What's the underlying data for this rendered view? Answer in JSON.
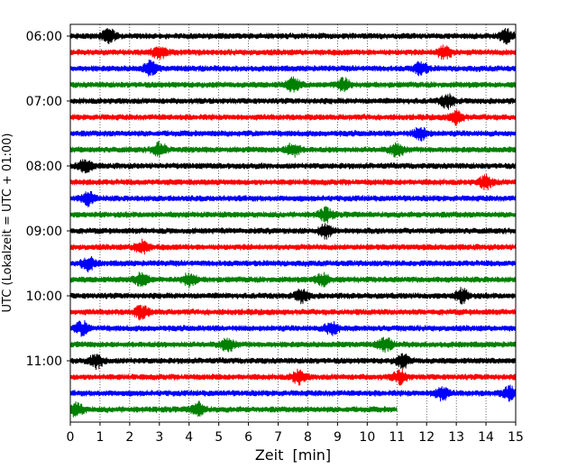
{
  "chart_data": {
    "type": "line",
    "title": "",
    "xlabel": "Zeit  [min]",
    "ylabel": "UTC (Lokalzeit = UTC + 01:00)",
    "xlim": [
      0,
      15
    ],
    "x_ticks": [
      0,
      1,
      2,
      3,
      4,
      5,
      6,
      7,
      8,
      9,
      10,
      11,
      12,
      13,
      14,
      15
    ],
    "y_tick_labels": [
      "06:00",
      "07:00",
      "08:00",
      "09:00",
      "10:00",
      "11:00"
    ],
    "trace_interval_min": 15,
    "start_time": "06:00",
    "last_trace_end_min": 11.0,
    "grid": "vertical dotted at each minute",
    "color_cycle": [
      "#000000",
      "#ff0000",
      "#0000ff",
      "#008000"
    ],
    "traces": [
      {
        "start": "06:00",
        "color": "#000000",
        "events_min": [
          1.3,
          14.7
        ]
      },
      {
        "start": "06:15",
        "color": "#ff0000",
        "events_min": [
          3.0,
          12.6
        ]
      },
      {
        "start": "06:30",
        "color": "#0000ff",
        "events_min": [
          2.7,
          11.8
        ]
      },
      {
        "start": "06:45",
        "color": "#008000",
        "events_min": [
          7.5,
          9.2
        ]
      },
      {
        "start": "07:00",
        "color": "#000000",
        "events_min": [
          12.7
        ]
      },
      {
        "start": "07:15",
        "color": "#ff0000",
        "events_min": [
          13.0
        ]
      },
      {
        "start": "07:30",
        "color": "#0000ff",
        "events_min": [
          11.8
        ]
      },
      {
        "start": "07:45",
        "color": "#008000",
        "events_min": [
          3.0,
          7.5,
          11.0
        ]
      },
      {
        "start": "08:00",
        "color": "#000000",
        "events_min": [
          0.5
        ]
      },
      {
        "start": "08:15",
        "color": "#ff0000",
        "events_min": [
          14.0
        ]
      },
      {
        "start": "08:30",
        "color": "#0000ff",
        "events_min": [
          0.6
        ]
      },
      {
        "start": "08:45",
        "color": "#008000",
        "events_min": [
          8.6
        ]
      },
      {
        "start": "09:00",
        "color": "#000000",
        "events_min": [
          8.6
        ]
      },
      {
        "start": "09:15",
        "color": "#ff0000",
        "events_min": [
          2.4
        ]
      },
      {
        "start": "09:30",
        "color": "#0000ff",
        "events_min": [
          0.6
        ]
      },
      {
        "start": "09:45",
        "color": "#008000",
        "events_min": [
          2.4,
          4.0,
          8.5
        ]
      },
      {
        "start": "10:00",
        "color": "#000000",
        "events_min": [
          7.8,
          13.2
        ]
      },
      {
        "start": "10:15",
        "color": "#ff0000",
        "events_min": [
          2.4
        ]
      },
      {
        "start": "10:30",
        "color": "#0000ff",
        "events_min": [
          0.4,
          8.8
        ]
      },
      {
        "start": "10:45",
        "color": "#008000",
        "events_min": [
          5.3,
          10.6
        ]
      },
      {
        "start": "11:00",
        "color": "#000000",
        "events_min": [
          0.9,
          11.2
        ]
      },
      {
        "start": "11:15",
        "color": "#ff0000",
        "events_min": [
          7.7,
          11.1
        ]
      },
      {
        "start": "11:30",
        "color": "#0000ff",
        "events_min": [
          12.5,
          14.8
        ]
      },
      {
        "start": "11:45",
        "color": "#008000",
        "events_min": [
          0.2,
          4.3
        ]
      }
    ]
  }
}
